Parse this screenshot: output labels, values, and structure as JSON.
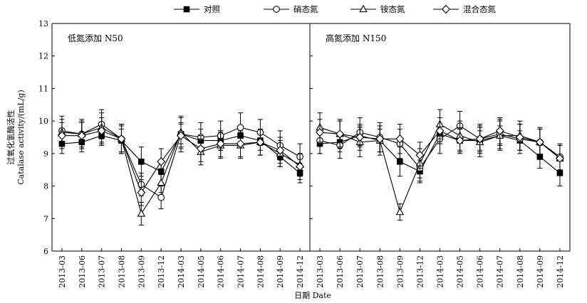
{
  "chart_data": {
    "type": "line",
    "ylabel": [
      "过氧化氢酶活性",
      "Catalase activity/(mL/g)"
    ],
    "xlabel": "日期 Date",
    "ylim": [
      6,
      13
    ],
    "yticks": [
      6,
      7,
      8,
      9,
      10,
      11,
      12,
      13
    ],
    "grid": false,
    "legend_placement": "top-center",
    "categories": [
      "2013-03",
      "2013-06",
      "2013-07",
      "2013-08",
      "2013-09",
      "2013-12",
      "2014-03",
      "2014-05",
      "2014-06",
      "2014-07",
      "2014-08",
      "2014-09",
      "2014-12"
    ],
    "legend": [
      {
        "name": "对照",
        "marker": "filled-square"
      },
      {
        "name": "硝态氮",
        "marker": "open-circle"
      },
      {
        "name": "铵态氮",
        "marker": "open-triangle"
      },
      {
        "name": "混合态氮",
        "marker": "open-diamond"
      }
    ],
    "panels": [
      {
        "title": "低氮添加 N50",
        "series": [
          {
            "name": "对照",
            "values": [
              9.3,
              9.35,
              9.55,
              9.4,
              8.75,
              8.45,
              9.6,
              9.4,
              9.4,
              9.55,
              9.4,
              8.9,
              8.4
            ],
            "errors": [
              0.3,
              0.3,
              0.3,
              0.35,
              0.45,
              0.35,
              0.3,
              0.35,
              0.3,
              0.3,
              0.3,
              0.3,
              0.3
            ]
          },
          {
            "name": "硝态氮",
            "values": [
              9.7,
              9.6,
              9.9,
              9.45,
              8.05,
              7.65,
              9.6,
              9.5,
              9.55,
              9.8,
              9.65,
              9.25,
              8.9
            ],
            "errors": [
              0.45,
              0.45,
              0.45,
              0.45,
              0.35,
              0.35,
              0.55,
              0.45,
              0.45,
              0.45,
              0.4,
              0.45,
              0.4
            ]
          },
          {
            "name": "铵态氮",
            "values": [
              9.65,
              9.6,
              9.8,
              9.45,
              7.15,
              8.1,
              9.65,
              9.05,
              9.25,
              9.25,
              9.35,
              9.0,
              8.65
            ],
            "errors": [
              0.4,
              0.4,
              0.45,
              0.45,
              0.35,
              0.3,
              0.45,
              0.4,
              0.4,
              0.4,
              0.4,
              0.4,
              0.35
            ]
          },
          {
            "name": "混合态氮",
            "values": [
              9.55,
              9.55,
              9.7,
              9.45,
              7.8,
              8.75,
              9.55,
              9.15,
              9.3,
              9.3,
              9.35,
              9.1,
              8.6
            ],
            "errors": [
              0.4,
              0.4,
              0.4,
              0.4,
              0.4,
              0.4,
              0.4,
              0.4,
              0.4,
              0.4,
              0.4,
              0.4,
              0.4
            ]
          }
        ]
      },
      {
        "title": "高氮添加 N150",
        "series": [
          {
            "name": "对照",
            "values": [
              9.3,
              9.35,
              9.55,
              9.4,
              8.75,
              8.45,
              9.6,
              9.4,
              9.4,
              9.55,
              9.4,
              8.9,
              8.4
            ],
            "errors": [
              0.3,
              0.3,
              0.3,
              0.35,
              0.45,
              0.35,
              0.3,
              0.35,
              0.3,
              0.3,
              0.3,
              0.35,
              0.4
            ]
          },
          {
            "name": "硝态氮",
            "values": [
              9.4,
              9.25,
              9.65,
              9.5,
              9.3,
              8.55,
              9.45,
              9.85,
              9.45,
              9.6,
              9.45,
              9.35,
              8.9
            ],
            "errors": [
              0.4,
              0.4,
              0.45,
              0.45,
              0.45,
              0.4,
              0.45,
              0.45,
              0.45,
              0.45,
              0.45,
              0.4,
              0.4
            ]
          },
          {
            "name": "铵态氮",
            "values": [
              9.8,
              9.6,
              9.35,
              9.4,
              7.2,
              8.7,
              9.9,
              9.55,
              9.35,
              9.55,
              9.55,
              9.35,
              8.85
            ],
            "errors": [
              0.45,
              0.45,
              0.45,
              0.45,
              0.25,
              0.45,
              0.45,
              0.45,
              0.45,
              0.45,
              0.45,
              0.45,
              0.4
            ]
          },
          {
            "name": "混合态氮",
            "values": [
              9.65,
              9.6,
              9.5,
              9.45,
              9.45,
              8.95,
              9.7,
              9.4,
              9.45,
              9.7,
              9.5,
              9.35,
              8.85
            ],
            "errors": [
              0.4,
              0.4,
              0.4,
              0.4,
              0.45,
              0.4,
              0.4,
              0.4,
              0.4,
              0.4,
              0.4,
              0.4,
              0.4
            ]
          }
        ]
      }
    ]
  }
}
